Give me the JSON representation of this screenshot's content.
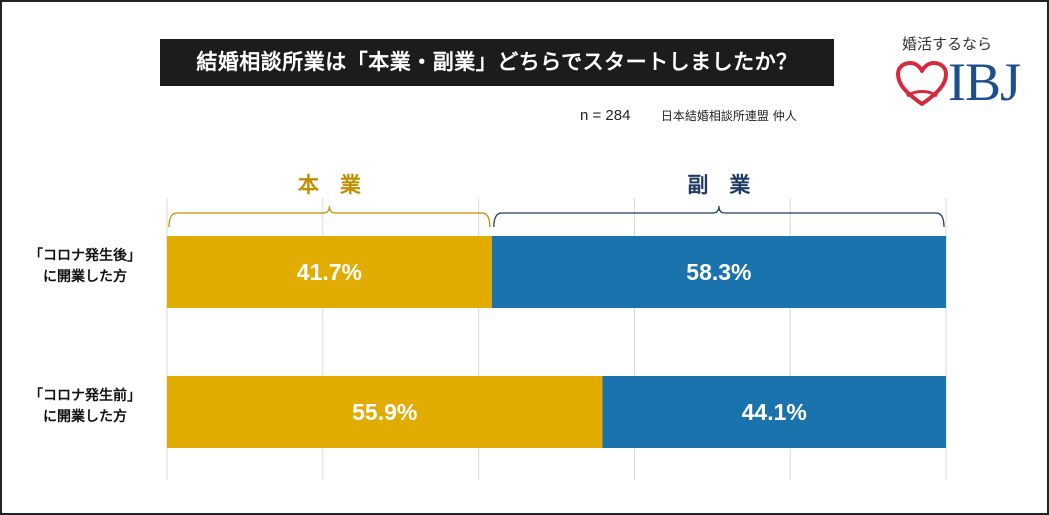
{
  "title": "結婚相談所業は「本業・副業」どちらでスタートしましたか？",
  "note": {
    "n": "n = 284",
    "source": "日本結婚相談所連盟 仲人"
  },
  "logo": {
    "tagline": "婚活するなら",
    "brand": "IBJ"
  },
  "colors": {
    "honbu": "#e2ab00",
    "fukugyo": "#1a73ad",
    "honbu_text": "#bf8f00",
    "fukugyo_text": "#1f3b68",
    "grid": "#d9d9d9",
    "title_bg": "#1c1c1c"
  },
  "chart_data": {
    "type": "bar",
    "orientation": "horizontal",
    "stacked": true,
    "percent": true,
    "xlim": [
      0,
      100
    ],
    "grid": true,
    "categories": [
      [
        "「コロナ発生後」",
        "に開業した方"
      ],
      [
        "「コロナ発生前」",
        "に開業した方"
      ]
    ],
    "series": [
      {
        "name": "本　業",
        "values": [
          41.7,
          55.9
        ],
        "labels": [
          "41.7%",
          "55.9%"
        ]
      },
      {
        "name": "副　業",
        "values": [
          58.3,
          44.1
        ],
        "labels": [
          "58.3%",
          "44.1%"
        ]
      }
    ]
  }
}
